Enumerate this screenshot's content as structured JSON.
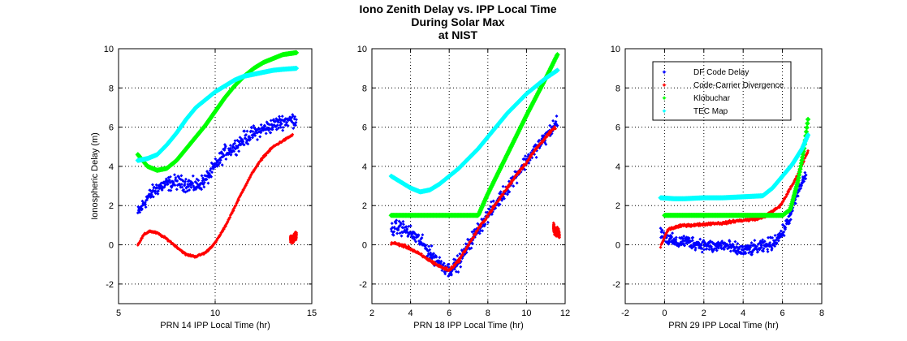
{
  "title_lines": [
    "Iono Zenith Delay vs. IPP Local Time",
    "During Solar Max",
    "at NIST"
  ],
  "colors": {
    "df_code_delay": "#0000ff",
    "code_carrier_divergence": "#ff0000",
    "klobuchar": "#00ff00",
    "tec_map": "#00ffff"
  },
  "chart_data": [
    {
      "type": "scatter",
      "xlabel": "PRN 14 IPP Local Time (hr)",
      "ylabel": "Ionospheric Delay (m)",
      "xlim": [
        5,
        15
      ],
      "ylim": [
        -3,
        10
      ],
      "xticks": [
        5,
        10,
        15
      ],
      "yticks": [
        -2,
        0,
        2,
        4,
        6,
        8,
        10
      ],
      "grid": true,
      "legend": null,
      "series": [
        {
          "name": "DF Code Delay",
          "key": "df_code_delay",
          "noise": 0.4,
          "x": [
            6.0,
            6.5,
            7.0,
            7.5,
            8.0,
            8.5,
            9.0,
            9.5,
            10.0,
            10.5,
            11.0,
            11.5,
            12.0,
            12.5,
            13.0,
            13.5,
            14.2
          ],
          "y": [
            1.6,
            2.4,
            2.9,
            3.1,
            3.2,
            3.1,
            3.0,
            3.3,
            4.0,
            4.7,
            5.0,
            5.4,
            5.7,
            5.9,
            6.1,
            6.3,
            6.4
          ]
        },
        {
          "name": "Code-Carrier Divergence",
          "key": "code_carrier_divergence",
          "noise": 0.05,
          "x": [
            6.0,
            6.3,
            6.6,
            7.0,
            7.5,
            8.0,
            8.5,
            9.0,
            9.5,
            10.0,
            10.5,
            11.0,
            11.5,
            12.0,
            12.5,
            13.0,
            13.5,
            14.0
          ],
          "y": [
            0.0,
            0.5,
            0.7,
            0.6,
            0.3,
            -0.1,
            -0.5,
            -0.6,
            -0.4,
            0.1,
            0.9,
            1.9,
            2.9,
            3.8,
            4.5,
            5.0,
            5.3,
            5.6
          ]
        },
        {
          "name": "Code-Carrier Divergence outlier",
          "key": "code_carrier_divergence",
          "noise": 0.2,
          "x": [
            13.9,
            14.0,
            14.1,
            14.2
          ],
          "y": [
            0.3,
            0.2,
            0.4,
            0.5
          ]
        },
        {
          "name": "Klobuchar",
          "key": "klobuchar",
          "noise": 0,
          "x": [
            6.0,
            6.5,
            7.0,
            7.5,
            8.0,
            8.5,
            9.0,
            9.5,
            10.0,
            10.5,
            11.0,
            11.5,
            12.0,
            12.5,
            13.0,
            13.5,
            14.2
          ],
          "y": [
            4.6,
            4.0,
            3.8,
            3.9,
            4.3,
            4.9,
            5.5,
            6.1,
            6.8,
            7.5,
            8.1,
            8.6,
            9.0,
            9.3,
            9.5,
            9.7,
            9.8
          ]
        },
        {
          "name": "TEC Map",
          "key": "tec_map",
          "noise": 0,
          "x": [
            6.0,
            6.5,
            7.0,
            7.5,
            8.0,
            8.5,
            9.0,
            9.5,
            10.0,
            10.5,
            11.0,
            11.5,
            12.0,
            12.5,
            13.0,
            13.5,
            14.2
          ],
          "y": [
            4.3,
            4.4,
            4.6,
            5.1,
            5.7,
            6.4,
            7.0,
            7.4,
            7.8,
            8.1,
            8.4,
            8.6,
            8.7,
            8.8,
            8.9,
            8.95,
            9.0
          ]
        }
      ]
    },
    {
      "type": "scatter",
      "xlabel": "PRN 18 IPP Local Time (hr)",
      "ylabel": "",
      "xlim": [
        2,
        12
      ],
      "ylim": [
        -3,
        10
      ],
      "xticks": [
        2,
        4,
        6,
        8,
        10,
        12
      ],
      "yticks": [
        -2,
        0,
        2,
        4,
        6,
        8,
        10
      ],
      "grid": true,
      "legend": null,
      "series": [
        {
          "name": "DF Code Delay",
          "key": "df_code_delay",
          "noise": 0.4,
          "x": [
            3.0,
            3.5,
            4.0,
            4.5,
            5.0,
            5.5,
            6.0,
            6.5,
            7.0,
            7.5,
            8.0,
            8.5,
            9.0,
            9.5,
            10.0,
            10.5,
            11.0,
            11.6
          ],
          "y": [
            0.8,
            0.9,
            0.6,
            0.2,
            -0.4,
            -0.9,
            -1.3,
            -0.9,
            0.0,
            0.8,
            1.5,
            2.2,
            2.9,
            3.6,
            4.3,
            4.9,
            5.5,
            6.3
          ]
        },
        {
          "name": "Code-Carrier Divergence",
          "key": "code_carrier_divergence",
          "noise": 0.08,
          "x": [
            3.0,
            3.5,
            4.0,
            4.5,
            5.0,
            5.5,
            6.0,
            6.5,
            7.0,
            7.5,
            8.0,
            8.5,
            9.0,
            9.5,
            10.0,
            10.5,
            11.0,
            11.5
          ],
          "y": [
            0.1,
            0.0,
            -0.2,
            -0.5,
            -0.8,
            -1.1,
            -1.3,
            -0.8,
            0.0,
            0.8,
            1.5,
            2.2,
            2.9,
            3.6,
            4.2,
            4.9,
            5.5,
            6.0
          ]
        },
        {
          "name": "Code-Carrier Divergence outlier",
          "key": "code_carrier_divergence",
          "noise": 0.2,
          "x": [
            11.4,
            11.5,
            11.6,
            11.7
          ],
          "y": [
            0.9,
            0.6,
            0.7,
            0.5
          ]
        },
        {
          "name": "Klobuchar",
          "key": "klobuchar",
          "noise": 0,
          "x": [
            3.0,
            4.0,
            5.0,
            6.0,
            7.0,
            7.5,
            8.0,
            9.0,
            10.0,
            11.0,
            11.6
          ],
          "y": [
            1.5,
            1.5,
            1.5,
            1.5,
            1.5,
            1.5,
            2.6,
            4.6,
            6.6,
            8.5,
            9.7
          ]
        },
        {
          "name": "TEC Map",
          "key": "tec_map",
          "noise": 0,
          "x": [
            3.0,
            3.5,
            4.0,
            4.5,
            5.0,
            5.5,
            6.0,
            6.5,
            7.0,
            7.5,
            8.0,
            8.5,
            9.0,
            9.5,
            10.0,
            10.5,
            11.0,
            11.6
          ],
          "y": [
            3.5,
            3.2,
            2.9,
            2.7,
            2.8,
            3.1,
            3.5,
            3.9,
            4.4,
            4.9,
            5.5,
            6.1,
            6.7,
            7.2,
            7.7,
            8.1,
            8.5,
            8.9
          ]
        }
      ]
    },
    {
      "type": "scatter",
      "xlabel": "PRN 29 IPP Local Time (hr)",
      "ylabel": "",
      "xlim": [
        -2,
        8
      ],
      "ylim": [
        -3,
        10
      ],
      "xticks": [
        -2,
        0,
        2,
        4,
        6,
        8
      ],
      "yticks": [
        -2,
        0,
        2,
        4,
        6,
        8,
        10
      ],
      "grid": true,
      "legend": "top-right",
      "series": [
        {
          "name": "DF Code Delay",
          "key": "df_code_delay",
          "noise": 0.35,
          "x": [
            -0.2,
            0.2,
            0.6,
            1.0,
            1.5,
            2.0,
            2.5,
            3.0,
            3.5,
            4.0,
            4.5,
            5.0,
            5.5,
            6.0,
            6.4,
            6.8,
            7.2
          ],
          "y": [
            0.6,
            0.3,
            0.1,
            0.2,
            0.1,
            0.0,
            -0.1,
            0.0,
            -0.2,
            -0.3,
            -0.2,
            -0.1,
            0.1,
            0.6,
            1.5,
            2.7,
            3.6
          ]
        },
        {
          "name": "Code-Carrier Divergence",
          "key": "code_carrier_divergence",
          "noise": 0.07,
          "x": [
            -0.2,
            0.0,
            0.2,
            0.6,
            1.0,
            1.5,
            2.0,
            2.5,
            3.0,
            3.5,
            4.0,
            4.5,
            5.0,
            5.5,
            5.9,
            6.3,
            6.7,
            7.0,
            7.3
          ],
          "y": [
            -0.1,
            0.4,
            0.8,
            0.9,
            1.0,
            1.0,
            1.05,
            1.1,
            1.1,
            1.2,
            1.25,
            1.3,
            1.4,
            1.7,
            2.0,
            2.7,
            3.4,
            4.1,
            4.8
          ]
        },
        {
          "name": "Klobuchar",
          "key": "klobuchar",
          "noise": 0,
          "x": [
            0.0,
            1.0,
            2.0,
            3.0,
            4.0,
            5.0,
            6.0,
            6.4,
            6.8,
            7.1,
            7.3
          ],
          "y": [
            1.5,
            1.5,
            1.5,
            1.5,
            1.5,
            1.5,
            1.5,
            1.8,
            3.3,
            4.9,
            6.4
          ]
        },
        {
          "name": "TEC Map",
          "key": "tec_map",
          "noise": 0,
          "x": [
            -0.2,
            0.5,
            1.0,
            2.0,
            3.0,
            4.0,
            5.0,
            5.5,
            6.0,
            6.5,
            7.0,
            7.3
          ],
          "y": [
            2.4,
            2.35,
            2.35,
            2.4,
            2.4,
            2.45,
            2.5,
            2.9,
            3.5,
            4.1,
            4.9,
            5.6
          ]
        }
      ]
    }
  ],
  "legend": {
    "items": [
      {
        "label": "DF Code Delay",
        "key": "df_code_delay"
      },
      {
        "label": "Code-Carrier Divergence",
        "key": "code_carrier_divergence"
      },
      {
        "label": "Klobuchar",
        "key": "klobuchar"
      },
      {
        "label": "TEC Map",
        "key": "tec_map"
      }
    ]
  }
}
